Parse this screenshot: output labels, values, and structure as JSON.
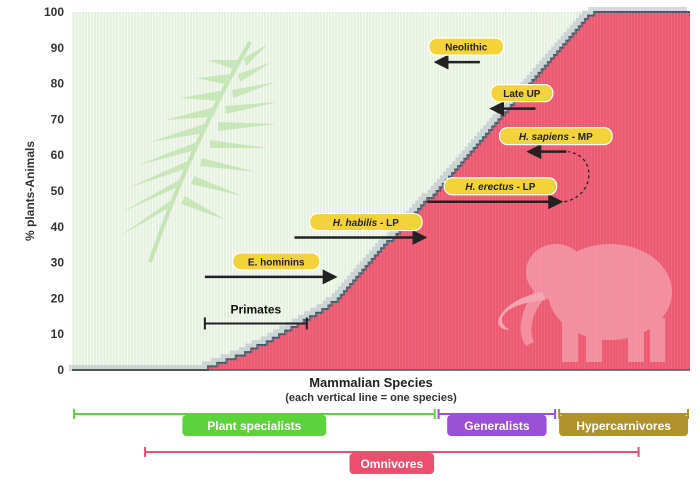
{
  "chart_data": {
    "type": "area",
    "ylabel": "% plants-Animals",
    "xlabel": "Mammalian Species",
    "xlabel_sub": "(each vertical line = one species)",
    "ylim": [
      0,
      100
    ],
    "y_ticks": [
      "0",
      "10",
      "20",
      "30",
      "40",
      "50",
      "60",
      "70",
      "80",
      "90",
      "100"
    ],
    "species_count": 200,
    "series_values": [
      0,
      0,
      0,
      0,
      0,
      0,
      0,
      0,
      0,
      0,
      0,
      0,
      0,
      0,
      0,
      0,
      0,
      0,
      0,
      0,
      0,
      0,
      0,
      0,
      0,
      0,
      0,
      0,
      0,
      0,
      0,
      0,
      0,
      0,
      0,
      0,
      0,
      0,
      0,
      0,
      0,
      0,
      0,
      0,
      1,
      1,
      1,
      2,
      2,
      2,
      3,
      3,
      3,
      4,
      4,
      4,
      5,
      5,
      6,
      6,
      7,
      7,
      7,
      8,
      8,
      9,
      9,
      10,
      10,
      11,
      11,
      12,
      12,
      13,
      13,
      14,
      14,
      15,
      15,
      16,
      16,
      17,
      17,
      18,
      19,
      19,
      20,
      21,
      22,
      23,
      24,
      25,
      26,
      27,
      28,
      29,
      30,
      31,
      32,
      33,
      34,
      35,
      36,
      36,
      37,
      38,
      39,
      40,
      41,
      42,
      43,
      44,
      45,
      46,
      47,
      48,
      48,
      49,
      50,
      51,
      52,
      53,
      54,
      55,
      56,
      57,
      58,
      59,
      60,
      61,
      62,
      63,
      64,
      65,
      66,
      67,
      68,
      69,
      70,
      71,
      72,
      73,
      74,
      75,
      76,
      77,
      78,
      79,
      80,
      81,
      82,
      83,
      84,
      85,
      86,
      87,
      88,
      89,
      90,
      91,
      92,
      93,
      94,
      95,
      96,
      97,
      98,
      99,
      99,
      100,
      100,
      100,
      100,
      100,
      100,
      100,
      100,
      100,
      100,
      100,
      100,
      100,
      100,
      100,
      100,
      100,
      100,
      100,
      100,
      100,
      100,
      100,
      100,
      100,
      100,
      100,
      100,
      100,
      100,
      100,
      100
    ],
    "colors": {
      "plants": "#e5f0df",
      "animals": "#ec5a72",
      "edge": "#395a6c",
      "pill": "#f4d23a",
      "arrow": "#222222"
    },
    "annotations": [
      {
        "label": "Neolithic",
        "y": 86,
        "x_start_species": 132,
        "x_end_species": 118,
        "direction": "left"
      },
      {
        "label": "Late UP",
        "y": 73,
        "x_start_species": 150,
        "x_end_species": 136,
        "direction": "left"
      },
      {
        "label_italic": "H. sapiens",
        "label_rest": " - MP",
        "y": 61,
        "x_start_species": 160,
        "x_end_species": 148,
        "direction": "left"
      },
      {
        "label_italic": "H. erectus",
        "label_rest": " - LP",
        "y": 47,
        "x_start_species": 115,
        "x_end_species": 158,
        "direction": "right"
      },
      {
        "label_italic": "H. habilis",
        "label_rest": " - LP",
        "y": 37,
        "x_start_species": 72,
        "x_end_species": 114,
        "direction": "right"
      },
      {
        "label": "E. hominins",
        "y": 26,
        "x_start_species": 43,
        "x_end_species": 85,
        "direction": "right"
      }
    ],
    "primates": {
      "label": "Primates",
      "y": 13,
      "x_start_species": 43,
      "x_end_species": 76
    }
  },
  "categories": [
    {
      "label": "Plant specialists",
      "color": "#5cd23c",
      "x_start_species": 0,
      "x_end_species": 117
    },
    {
      "label": "Generalists",
      "color": "#9b4fd6",
      "x_start_species": 118,
      "x_end_species": 156
    },
    {
      "label": "Hypercarnivores",
      "color": "#b0912a",
      "x_start_species": 157,
      "x_end_species": 199
    },
    {
      "label": "Omnivores",
      "color": "#ec4f6e",
      "x_start_species": 23,
      "x_end_species": 183
    }
  ]
}
